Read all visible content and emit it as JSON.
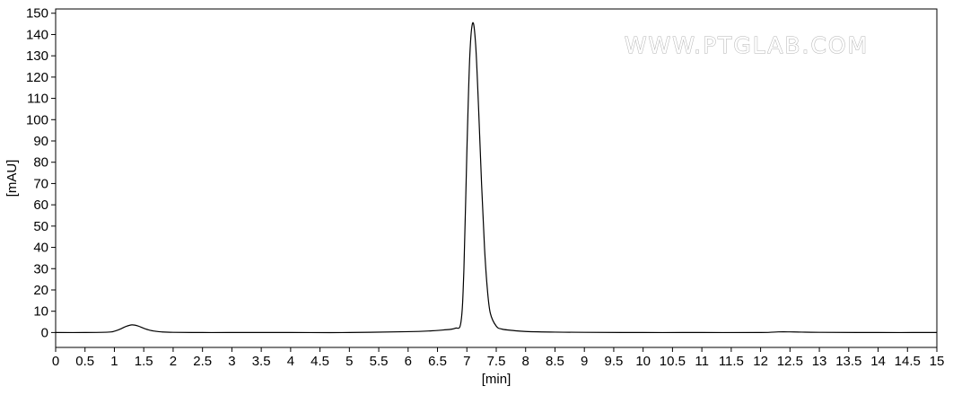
{
  "chart_data": {
    "type": "line",
    "title": "",
    "xlabel": "[min]",
    "ylabel": "[mAU]",
    "xlim": [
      0,
      15
    ],
    "ylim": [
      -7,
      152
    ],
    "x_ticks": [
      0,
      0.5,
      1,
      1.5,
      2,
      2.5,
      3,
      3.5,
      4,
      4.5,
      5,
      5.5,
      6,
      6.5,
      7,
      7.5,
      8,
      8.5,
      9,
      9.5,
      10,
      10.5,
      11,
      11.5,
      12,
      12.5,
      13,
      13.5,
      14,
      14.5,
      15
    ],
    "x_tick_labels": [
      "0",
      "0.5",
      "1",
      "1.5",
      "2",
      "2.5",
      "3",
      "3.5",
      "4",
      "4.5",
      "5",
      "5.5",
      "6",
      "6.5",
      "7",
      "7.5",
      "8",
      "8.5",
      "9",
      "9.5",
      "10",
      "10.5",
      "11",
      "11.5",
      "12",
      "12.5",
      "13",
      "13.5",
      "14",
      "14.5",
      "15"
    ],
    "y_ticks": [
      0,
      10,
      20,
      30,
      40,
      50,
      60,
      70,
      80,
      90,
      100,
      110,
      120,
      130,
      140,
      150
    ],
    "y_tick_labels": [
      "0",
      "10",
      "20",
      "30",
      "40",
      "50",
      "60",
      "70",
      "80",
      "90",
      "100",
      "110",
      "120",
      "130",
      "140",
      "150"
    ],
    "grid": false,
    "legend": "none",
    "series": [
      {
        "x": [
          0,
          0.5,
          0.9,
          1.0,
          1.1,
          1.2,
          1.3,
          1.4,
          1.5,
          1.6,
          1.7,
          1.8,
          2.0,
          2.5,
          3.0,
          4.0,
          5.0,
          6.0,
          6.4,
          6.6,
          6.8,
          6.9,
          6.95,
          7.0,
          7.05,
          7.1,
          7.15,
          7.2,
          7.25,
          7.3,
          7.35,
          7.4,
          7.5,
          7.6,
          7.8,
          8.0,
          8.5,
          9.0,
          10.0,
          11.0,
          12.0,
          12.3,
          12.5,
          12.7,
          13.0,
          14.0,
          15.0
        ],
        "y": [
          0,
          0,
          0.2,
          0.6,
          1.6,
          2.9,
          3.6,
          3.1,
          2.0,
          1.1,
          0.6,
          0.3,
          0.1,
          0,
          0,
          0,
          0,
          0.4,
          0.8,
          1.2,
          2.0,
          5.0,
          30.0,
          85.0,
          130.0,
          145.5,
          135.0,
          105.0,
          70.0,
          40.0,
          20.0,
          9.0,
          3.0,
          1.6,
          0.9,
          0.5,
          0.2,
          0.1,
          0,
          0,
          0,
          0.3,
          0.3,
          0.2,
          0.1,
          0,
          0
        ],
        "color": "#000000"
      }
    ],
    "watermark": "WWW.PTGLAB.COM"
  }
}
